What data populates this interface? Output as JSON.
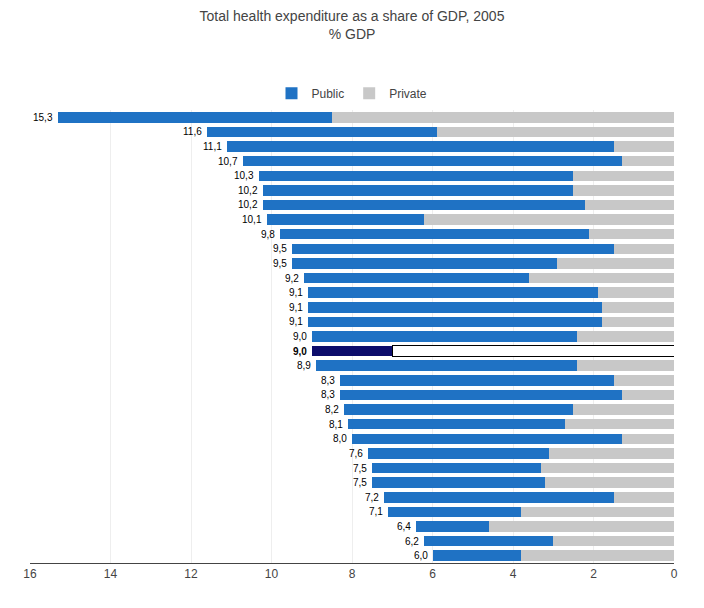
{
  "chart_data": {
    "type": "bar",
    "orientation": "horizontal",
    "stacked": true,
    "title": "Total health expenditure as a share of GDP, 2005",
    "subtitle": "% GDP",
    "categories": [
      null,
      null,
      null,
      null,
      null,
      null,
      null,
      null,
      null,
      null,
      null,
      null,
      null,
      null,
      null,
      null,
      null,
      null,
      null,
      null,
      null,
      null,
      null,
      null,
      null,
      null,
      null,
      null,
      null,
      null,
      null
    ],
    "series": [
      {
        "name": "Private",
        "color": "#C8C8C8",
        "colors": [
          "#C8C8C8",
          "#C8C8C8",
          "#C8C8C8",
          "#C8C8C8",
          "#C8C8C8",
          "#C8C8C8",
          "#C8C8C8",
          "#C8C8C8",
          "#C8C8C8",
          "#C8C8C8",
          "#C8C8C8",
          "#C8C8C8",
          "#C8C8C8",
          "#C8C8C8",
          "#C8C8C8",
          "#C8C8C8",
          "#FFFFFF",
          "#C8C8C8",
          "#C8C8C8",
          "#C8C8C8",
          "#C8C8C8",
          "#C8C8C8",
          "#C8C8C8",
          "#C8C8C8",
          "#C8C8C8",
          "#C8C8C8",
          "#C8C8C8",
          "#C8C8C8",
          "#C8C8C8",
          "#C8C8C8",
          "#C8C8C8"
        ],
        "values": [
          8.5,
          5.9,
          1.5,
          1.3,
          2.5,
          2.5,
          2.2,
          6.2,
          2.1,
          1.5,
          2.9,
          3.6,
          1.9,
          1.8,
          1.8,
          2.4,
          7.0,
          2.4,
          1.5,
          1.3,
          2.5,
          2.7,
          1.3,
          3.1,
          3.3,
          3.2,
          1.5,
          3.8,
          4.6,
          3.0,
          3.8
        ]
      },
      {
        "name": "Public",
        "color": "#1F72C4",
        "colors": [
          "#1F72C4",
          "#1F72C4",
          "#1F72C4",
          "#1F72C4",
          "#1F72C4",
          "#1F72C4",
          "#1F72C4",
          "#1F72C4",
          "#1F72C4",
          "#1F72C4",
          "#1F72C4",
          "#1F72C4",
          "#1F72C4",
          "#1F72C4",
          "#1F72C4",
          "#1F72C4",
          "#0D0D6B",
          "#1F72C4",
          "#1F72C4",
          "#1F72C4",
          "#1F72C4",
          "#1F72C4",
          "#1F72C4",
          "#1F72C4",
          "#1F72C4",
          "#1F72C4",
          "#1F72C4",
          "#1F72C4",
          "#1F72C4",
          "#1F72C4",
          "#1F72C4"
        ],
        "values": [
          6.8,
          5.7,
          9.6,
          9.4,
          7.8,
          7.7,
          8.0,
          3.9,
          7.7,
          8.0,
          6.6,
          5.6,
          7.2,
          7.3,
          7.3,
          6.6,
          2.0,
          6.5,
          6.8,
          7.0,
          5.7,
          5.4,
          6.7,
          4.5,
          4.2,
          4.3,
          5.7,
          3.3,
          1.8,
          3.2,
          2.2
        ]
      }
    ],
    "totals": [
      15.3,
      11.6,
      11.1,
      10.7,
      10.3,
      10.2,
      10.2,
      10.1,
      9.8,
      9.5,
      9.5,
      9.2,
      9.1,
      9.1,
      9.1,
      9.0,
      9.0,
      8.9,
      8.3,
      8.3,
      8.2,
      8.1,
      8.0,
      7.6,
      7.5,
      7.5,
      7.2,
      7.1,
      6.4,
      6.2,
      6.0
    ],
    "value_labels": [
      "15,3",
      "11,6",
      "11,1",
      "10,7",
      "10,3",
      "10,2",
      "10,2",
      "10,1",
      "9,8",
      "9,5",
      "9,5",
      "9,2",
      "9,1",
      "9,1",
      "9,1",
      "9,0",
      "9,0",
      "8,9",
      "8,3",
      "8,3",
      "8,2",
      "8,1",
      "8,0",
      "7,6",
      "7,5",
      "7,5",
      "7,2",
      "7,1",
      "6,4",
      "6,2",
      "6,0"
    ],
    "xlim": [
      16,
      0
    ],
    "xticks": [
      16,
      14,
      12,
      10,
      8,
      6,
      4,
      2,
      0
    ],
    "grid": true,
    "legend": "top",
    "tick_labels": "x"
  }
}
